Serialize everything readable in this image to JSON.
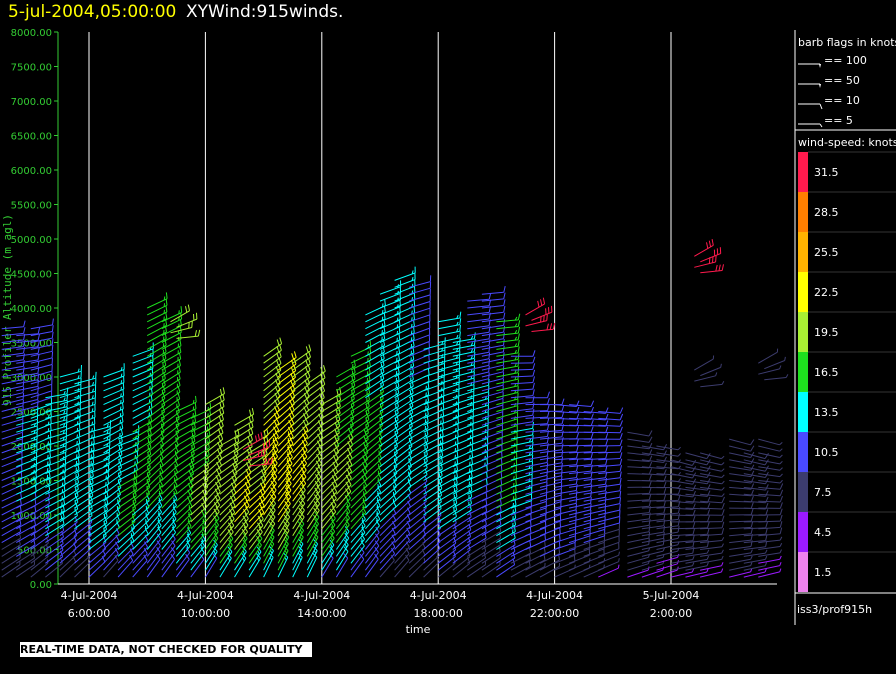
{
  "header": {
    "timestamp": "5-jul-2004,05:00:00",
    "product": "XYWind:915winds."
  },
  "footer_text": "REAL-TIME DATA, NOT CHECKED FOR QUALITY",
  "legend": {
    "barb_title": "barb flags in knots",
    "barb_items": [
      {
        "label": "== 100",
        "kind": "flag"
      },
      {
        "label": "== 50",
        "kind": "flag"
      },
      {
        "label": "== 10",
        "kind": "full"
      },
      {
        "label": "== 5",
        "kind": "half"
      }
    ],
    "speed_title": "wind-speed: knots",
    "speed_scale": [
      {
        "label": "31.5",
        "color": "#ff1a4d"
      },
      {
        "label": "28.5",
        "color": "#ff7f00"
      },
      {
        "label": "25.5",
        "color": "#ffb300"
      },
      {
        "label": "22.5",
        "color": "#ffff00"
      },
      {
        "label": "19.5",
        "color": "#a8f033"
      },
      {
        "label": "16.5",
        "color": "#1ee01e"
      },
      {
        "label": "13.5",
        "color": "#00ffff"
      },
      {
        "label": "10.5",
        "color": "#4a4aff"
      },
      {
        "label": "7.5",
        "color": "#3c3c6e"
      },
      {
        "label": "4.5",
        "color": "#9b1aff"
      },
      {
        "label": "1.5",
        "color": "#ee82ee"
      }
    ],
    "source": "iss3/prof915h"
  },
  "chart_data": {
    "type": "scatter",
    "title": "XYWind:915winds.",
    "xlabel": "time",
    "ylabel": "915 Profiler Altitude (m agl)",
    "ylim": [
      0,
      8000
    ],
    "yticks": [
      "8000.00",
      "7500.00",
      "7000.00",
      "6500.00",
      "6000.00",
      "5500.00",
      "5000.00",
      "4500.00",
      "4000.00",
      "3500.00",
      "3000.00",
      "2500.00",
      "2000.00",
      "1500.00",
      "1000.00",
      "500.00",
      "0.00"
    ],
    "xticks": [
      {
        "date": "4-Jul-2004",
        "time": "6:00:00"
      },
      {
        "date": "4-Jul-2004",
        "time": "10:00:00"
      },
      {
        "date": "4-Jul-2004",
        "time": "14:00:00"
      },
      {
        "date": "4-Jul-2004",
        "time": "18:00:00"
      },
      {
        "date": "4-Jul-2004",
        "time": "22:00:00"
      },
      {
        "date": "5-Jul-2004",
        "time": "2:00:00"
      }
    ],
    "grid": "vertical",
    "series": [
      {
        "hour": 3.0,
        "top": 3700,
        "peak": 12,
        "dir": 250
      },
      {
        "hour": 3.5,
        "top": 3600,
        "peak": 13,
        "dir": 250
      },
      {
        "hour": 4.0,
        "top": 3700,
        "peak": 13,
        "dir": 245
      },
      {
        "hour": 4.5,
        "top": 2700,
        "peak": 14,
        "dir": 245
      },
      {
        "hour": 5.0,
        "top": 3000,
        "peak": 14,
        "dir": 240
      },
      {
        "hour": 5.5,
        "top": 2900,
        "peak": 14,
        "dir": 240
      },
      {
        "hour": 6.0,
        "top": 2200,
        "peak": 15,
        "dir": 240
      },
      {
        "hour": 6.5,
        "top": 3000,
        "peak": 15,
        "dir": 235
      },
      {
        "hour": 7.0,
        "top": 2100,
        "peak": 16,
        "dir": 235
      },
      {
        "hour": 7.5,
        "top": 3300,
        "peak": 16,
        "dir": 235
      },
      {
        "hour": 8.0,
        "top": 4000,
        "peak": 17,
        "dir": 230
      },
      {
        "hour": 8.5,
        "top": 3800,
        "peak": 17,
        "dir": 230
      },
      {
        "hour": 9.0,
        "top": 2500,
        "peak": 18,
        "dir": 230
      },
      {
        "hour": 9.5,
        "top": 2400,
        "peak": 19,
        "dir": 230
      },
      {
        "hour": 10.0,
        "top": 2600,
        "peak": 20,
        "dir": 225
      },
      {
        "hour": 10.5,
        "top": 2000,
        "peak": 21,
        "dir": 225
      },
      {
        "hour": 11.0,
        "top": 2300,
        "peak": 22,
        "dir": 225
      },
      {
        "hour": 11.5,
        "top": 2000,
        "peak": 22,
        "dir": 225
      },
      {
        "hour": 12.0,
        "top": 3300,
        "peak": 23,
        "dir": 220
      },
      {
        "hour": 12.5,
        "top": 3100,
        "peak": 24,
        "dir": 220
      },
      {
        "hour": 13.0,
        "top": 3200,
        "peak": 22,
        "dir": 220
      },
      {
        "hour": 13.5,
        "top": 2900,
        "peak": 21,
        "dir": 220
      },
      {
        "hour": 14.0,
        "top": 2600,
        "peak": 20,
        "dir": 225
      },
      {
        "hour": 14.5,
        "top": 3000,
        "peak": 19,
        "dir": 225
      },
      {
        "hour": 15.0,
        "top": 3300,
        "peak": 18,
        "dir": 230
      },
      {
        "hour": 15.5,
        "top": 3900,
        "peak": 16,
        "dir": 230
      },
      {
        "hour": 16.0,
        "top": 4200,
        "peak": 15,
        "dir": 235
      },
      {
        "hour": 16.5,
        "top": 4400,
        "peak": 14,
        "dir": 235
      },
      {
        "hour": 17.0,
        "top": 4300,
        "peak": 13,
        "dir": 240
      },
      {
        "hour": 17.5,
        "top": 3400,
        "peak": 14,
        "dir": 240
      },
      {
        "hour": 18.0,
        "top": 3800,
        "peak": 15,
        "dir": 245
      },
      {
        "hour": 18.5,
        "top": 3500,
        "peak": 14,
        "dir": 245
      },
      {
        "hour": 19.0,
        "top": 4100,
        "peak": 13,
        "dir": 250
      },
      {
        "hour": 19.5,
        "top": 4200,
        "peak": 12,
        "dir": 250
      },
      {
        "hour": 20.0,
        "top": 3800,
        "peak": 17,
        "dir": 250
      },
      {
        "hour": 20.5,
        "top": 3300,
        "peak": 13,
        "dir": 255
      },
      {
        "hour": 21.0,
        "top": 2700,
        "peak": 12,
        "dir": 255
      },
      {
        "hour": 21.5,
        "top": 2600,
        "peak": 12,
        "dir": 255
      },
      {
        "hour": 22.0,
        "top": 2600,
        "peak": 12,
        "dir": 260
      },
      {
        "hour": 22.5,
        "top": 2600,
        "peak": 11,
        "dir": 260
      },
      {
        "hour": 23.0,
        "top": 2500,
        "peak": 11,
        "dir": 260
      },
      {
        "hour": 23.5,
        "top": 2500,
        "peak": 10,
        "dir": 260
      },
      {
        "hour": 24.5,
        "top": 2200,
        "peak": 9,
        "dir": 265
      },
      {
        "hour": 25.0,
        "top": 2000,
        "peak": 9,
        "dir": 265
      },
      {
        "hour": 25.5,
        "top": 2000,
        "peak": 8,
        "dir": 265
      },
      {
        "hour": 26.0,
        "top": 1800,
        "peak": 9,
        "dir": 270
      },
      {
        "hour": 26.5,
        "top": 1900,
        "peak": 9,
        "dir": 270
      },
      {
        "hour": 27.0,
        "top": 1900,
        "peak": 8,
        "dir": 270
      },
      {
        "hour": 28.0,
        "top": 2100,
        "peak": 9,
        "dir": 270
      },
      {
        "hour": 28.5,
        "top": 1900,
        "peak": 9,
        "dir": 270
      },
      {
        "hour": 29.0,
        "top": 2100,
        "peak": 8,
        "dir": 270
      }
    ],
    "upper_clusters": [
      {
        "hour": 8.8,
        "alt": 3800,
        "speed": 18
      },
      {
        "hour": 11.3,
        "alt": 1950,
        "speed": 31
      },
      {
        "hour": 21.0,
        "alt": 3900,
        "speed": 32
      },
      {
        "hour": 26.8,
        "alt": 4750,
        "speed": 32
      },
      {
        "hour": 26.8,
        "alt": 3100,
        "speed": 6
      },
      {
        "hour": 29.0,
        "alt": 3200,
        "speed": 6
      }
    ]
  }
}
